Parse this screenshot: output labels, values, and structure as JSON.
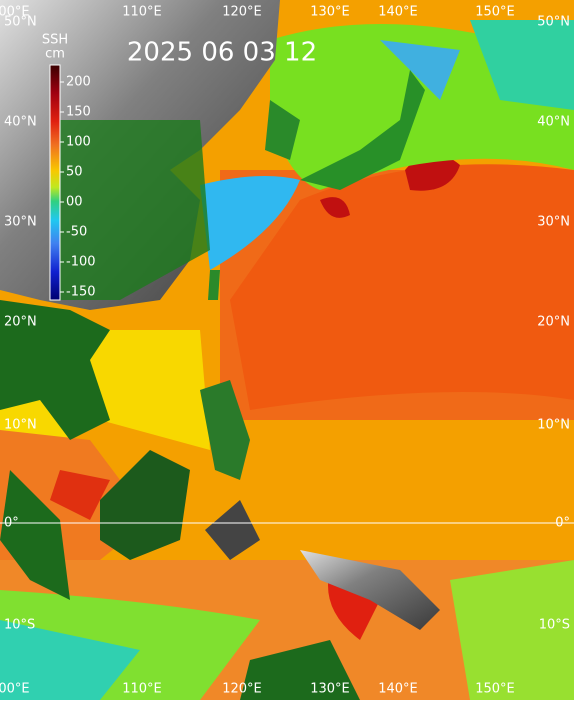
{
  "title": "2025 06 03 12",
  "colorbar": {
    "title": "SSH",
    "unit": "cm",
    "ticks": [
      200,
      150,
      100,
      50,
      {
        "value": 0,
        "label": "00"
      },
      -50,
      -100,
      -150
    ]
  },
  "lon_labels_top": [
    "00°E",
    "110°E",
    "120°E",
    "130°E",
    "140°E",
    "150°E"
  ],
  "lon_labels_bottom": [
    "00°E",
    "110°E",
    "120°E",
    "130°E",
    "140°E",
    "150°E"
  ],
  "lat_labels_left": [
    "50°N",
    "40°N",
    "30°N",
    "20°N",
    "10°N",
    "0°",
    "10°S"
  ],
  "lat_labels_right": [
    "50°N",
    "40°N",
    "30°N",
    "20°N",
    "10°N",
    "0°",
    "10°S"
  ]
}
